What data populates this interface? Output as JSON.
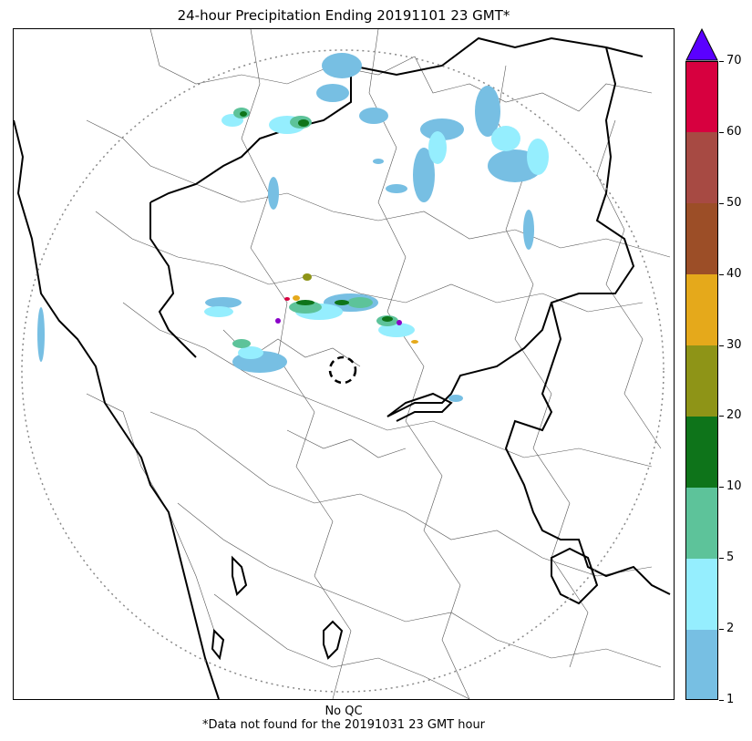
{
  "title": "24-hour Precipitation Ending 20191101 23 GMT*",
  "footer": {
    "qc": "No QC",
    "note": "*Data not found for the 20191031 23 GMT hour"
  },
  "colorbar": {
    "extend": "max",
    "extend_color": "#5a00ff",
    "labels": [
      "1",
      "2",
      "5",
      "10",
      "20",
      "30",
      "40",
      "50",
      "60",
      "70"
    ],
    "bins": [
      {
        "from": "1",
        "to": "2",
        "color": "#77bfe3"
      },
      {
        "from": "2",
        "to": "5",
        "color": "#95eefe"
      },
      {
        "from": "5",
        "to": "10",
        "color": "#5dc39a"
      },
      {
        "from": "10",
        "to": "20",
        "color": "#0e741a"
      },
      {
        "from": "20",
        "to": "30",
        "color": "#8e9417"
      },
      {
        "from": "30",
        "to": "40",
        "color": "#e5a91b"
      },
      {
        "from": "40",
        "to": "50",
        "color": "#9c4e27"
      },
      {
        "from": "50",
        "to": "60",
        "color": "#a74a43"
      },
      {
        "from": "60",
        "to": "70",
        "color": "#d7003f"
      }
    ]
  },
  "map": {
    "range_ring": "dotted",
    "radar_marker": "dashed circle",
    "colors": {
      "coast_state": "#000000",
      "district": "#555555",
      "ring": "#888888",
      "p1": "#77bfe3",
      "p2": "#95eefe",
      "p5": "#5dc39a",
      "p10": "#0e741a",
      "p20": "#8e9417",
      "p30": "#e5a91b",
      "p60": "#d7003f",
      "p70": "#8a00c8"
    }
  }
}
